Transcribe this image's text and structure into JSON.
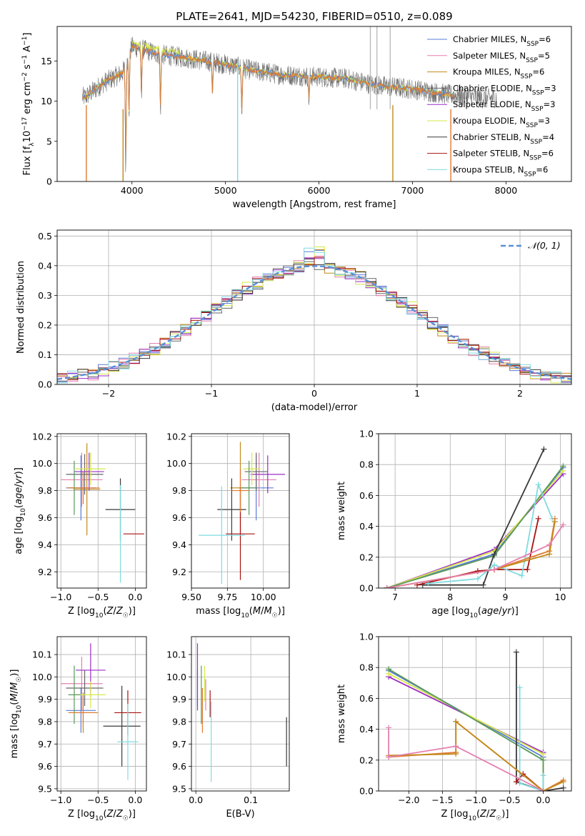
{
  "figure": {
    "title": "PLATE=2641, MJD=54230, FIBERID=0510, z=0.089"
  },
  "colors": {
    "Chabrier MILES": "#5a7bd6",
    "Salpeter MILES": "#e57fb0",
    "Kroupa MILES": "#c28a1a",
    "Chabrier ELODIE": "#666666",
    "Salpeter ELODIE": "#9b2cc7",
    "Kroupa ELODIE": "#d6e84a",
    "Chabrier STELIB": "#3a3a3a",
    "Salpeter STELIB": "#aa1111",
    "Kroupa STELIB": "#7fdbe0",
    "green": "#5a9a5a",
    "orange": "#e07a30",
    "gaussian": "#5b8fd6"
  },
  "chart_data": [
    {
      "id": "spectrum",
      "type": "line",
      "xlabel": "wavelength [Angstrom, rest frame]",
      "ylabel": "Flux [f_λ10^-17 erg cm^-2 s^-1 A^-1]",
      "xlim": [
        3200,
        8700
      ],
      "ylim": [
        0,
        19.3
      ],
      "xticks": [
        4000,
        5000,
        6000,
        7000,
        8000
      ],
      "yticks": [
        0,
        5,
        10,
        15
      ],
      "grid": false,
      "legend_position": "top-right",
      "legend": [
        {
          "label": "Chabrier MILES, N",
          "sub": "SSP",
          "eq": "=6",
          "color": "#5a7bd6"
        },
        {
          "label": "Salpeter MILES, N",
          "sub": "SSP",
          "eq": "=5",
          "color": "#e57fb0"
        },
        {
          "label": "Kroupa MILES, N",
          "sub": "SSP",
          "eq": "=6",
          "color": "#c28a1a"
        },
        {
          "label": "Chabrier ELODIE, N",
          "sub": "SSP",
          "eq": "=3",
          "color": "#666666"
        },
        {
          "label": "Salpeter ELODIE, N",
          "sub": "SSP",
          "eq": "=3",
          "color": "#9b2cc7"
        },
        {
          "label": "Kroupa ELODIE, N",
          "sub": "SSP",
          "eq": "=3",
          "color": "#d6e84a"
        },
        {
          "label": "Chabrier STELIB, N",
          "sub": "SSP",
          "eq": "=4",
          "color": "#3a3a3a"
        },
        {
          "label": "Salpeter STELIB, N",
          "sub": "SSP",
          "eq": "=6",
          "color": "#aa1111"
        },
        {
          "label": "Kroupa STELIB, N",
          "sub": "SSP",
          "eq": "=6",
          "color": "#7fdbe0"
        }
      ],
      "continuum": {
        "x": [
          3500,
          3700,
          3900,
          4000,
          4100,
          4300,
          4500,
          4800,
          5000,
          5300,
          5600,
          6000,
          6300,
          6600,
          7000,
          7400,
          7800,
          7900
        ],
        "y": [
          10.5,
          12.3,
          13.5,
          16.8,
          16.5,
          15.8,
          15.5,
          15.0,
          14.6,
          13.8,
          13.3,
          13.0,
          12.8,
          12.0,
          11.5,
          10.8,
          10.3,
          10.5
        ]
      },
      "data_range": [
        3470,
        7900
      ],
      "absorption_lines": [
        {
          "x": 3934,
          "depth": 13.5
        },
        {
          "x": 3969,
          "depth": 8.0
        },
        {
          "x": 4101,
          "depth": 6.0
        },
        {
          "x": 4305,
          "depth": 7.0
        },
        {
          "x": 4861,
          "depth": 4.0
        },
        {
          "x": 5175,
          "depth": 6.0
        },
        {
          "x": 5893,
          "depth": 3.0
        }
      ],
      "spikes": [
        {
          "x": 5130,
          "y0": 0,
          "y1": 15.0,
          "color": "#7fdbe0"
        },
        {
          "x": 3512,
          "y0": 0,
          "y1": 9.5,
          "color": "#e07a30"
        },
        {
          "x": 3905,
          "y0": 0,
          "y1": 9.0,
          "color": "#c28a1a"
        },
        {
          "x": 6790,
          "y0": 0,
          "y1": 9.5,
          "color": "#c28a1a"
        },
        {
          "x": 7410,
          "y0": 0,
          "y1": 9.0,
          "color": "#e07a30"
        },
        {
          "x": 6550,
          "y0": 9.0,
          "y1": 19.3,
          "color": "#bbbbbb"
        },
        {
          "x": 6620,
          "y0": 9.0,
          "y1": 19.3,
          "color": "#bbbbbb"
        },
        {
          "x": 6762,
          "y0": 9.0,
          "y1": 19.3,
          "color": "#bbbbbb"
        }
      ]
    },
    {
      "id": "residual_hist",
      "type": "step-histogram",
      "xlabel": "(data-model)/error",
      "ylabel": "Normed distribution",
      "xlim": [
        -2.5,
        2.5
      ],
      "ylim": [
        0,
        0.52
      ],
      "xticks": [
        -2,
        -1,
        0,
        1,
        2
      ],
      "yticks": [
        0.0,
        0.1,
        0.2,
        0.3,
        0.4,
        0.5
      ],
      "grid": true,
      "legend_position": "top-right",
      "legend": {
        "label": "𝒩(0, 1)",
        "color": "#5b8fd6"
      },
      "bin_width": 0.1,
      "x_start": -2.5,
      "series_colors": [
        "#5a7bd6",
        "#e57fb0",
        "#c28a1a",
        "#666666",
        "#9b2cc7",
        "#d6e84a",
        "#3a3a3a",
        "#aa1111",
        "#7fdbe0"
      ],
      "jitter": [
        0.018,
        0.025,
        0.02,
        0.022,
        0.02,
        0.025,
        0.02,
        0.018,
        0.02
      ]
    },
    {
      "id": "age_vs_Z",
      "type": "errorbar",
      "xlabel": "Z [log10(Z/Z☉)]",
      "ylabel": "age [log10(age/yr)]",
      "xlim": [
        -1.05,
        0.15
      ],
      "ylim": [
        9.08,
        10.22
      ],
      "xticks": [
        -1.0,
        -0.5,
        0.0
      ],
      "yticks": [
        9.2,
        9.4,
        9.6,
        9.8,
        10.0,
        10.2
      ],
      "grid": true,
      "points": [
        {
          "x": -0.73,
          "y": 9.82,
          "xe": 0.2,
          "ye": 0.24,
          "color": "#5a7bd6"
        },
        {
          "x": -0.72,
          "y": 9.88,
          "xe": 0.28,
          "ye": 0.2,
          "color": "#e57fb0"
        },
        {
          "x": -0.65,
          "y": 9.81,
          "xe": 0.18,
          "ye": 0.34,
          "color": "#c28a1a"
        },
        {
          "x": -0.68,
          "y": 9.92,
          "xe": 0.25,
          "ye": 0.15,
          "color": "#666666"
        },
        {
          "x": -0.62,
          "y": 9.94,
          "xe": 0.2,
          "ye": 0.14,
          "color": "#9b2cc7"
        },
        {
          "x": -0.6,
          "y": 9.96,
          "xe": 0.2,
          "ye": 0.12,
          "color": "#d6e84a"
        },
        {
          "x": -0.2,
          "y": 9.66,
          "xe": 0.2,
          "ye": 0.23,
          "color": "#3a3a3a"
        },
        {
          "x": -0.02,
          "y": 9.48,
          "xe": 0.14,
          "ye": 0.0,
          "color": "#aa1111"
        },
        {
          "x": -0.2,
          "y": 9.48,
          "xe": 0.0,
          "ye": 0.36,
          "color": "#7fdbe0"
        },
        {
          "x": -0.82,
          "y": 9.82,
          "xe": 0.08,
          "ye": 0.2,
          "color": "#5a9a5a"
        },
        {
          "x": -0.7,
          "y": 9.82,
          "xe": 0.22,
          "ye": 0.12,
          "color": "#e07a30"
        }
      ]
    },
    {
      "id": "age_vs_mass",
      "type": "errorbar",
      "xlabel": "mass [log10(M/M☉)]",
      "ylabel": "",
      "xlim": [
        9.5,
        10.18
      ],
      "ylim": [
        9.08,
        10.22
      ],
      "xticks": [
        9.5,
        9.75,
        10.0
      ],
      "yticks": [
        9.2,
        9.4,
        9.6,
        9.8,
        10.0,
        10.2
      ],
      "grid": true,
      "points": [
        {
          "x": 9.95,
          "y": 9.82,
          "xe": 0.12,
          "ye": 0.24,
          "color": "#5a7bd6"
        },
        {
          "x": 9.97,
          "y": 9.88,
          "xe": 0.12,
          "ye": 0.2,
          "color": "#e57fb0"
        },
        {
          "x": 9.84,
          "y": 9.82,
          "xe": 0.07,
          "ye": 0.34,
          "color": "#c28a1a"
        },
        {
          "x": 9.95,
          "y": 9.94,
          "xe": 0.08,
          "ye": 0.14,
          "color": "#666666"
        },
        {
          "x": 10.03,
          "y": 9.92,
          "xe": 0.12,
          "ye": 0.14,
          "color": "#9b2cc7"
        },
        {
          "x": 9.92,
          "y": 9.96,
          "xe": 0.06,
          "ye": 0.12,
          "color": "#d6e84a"
        },
        {
          "x": 9.78,
          "y": 9.66,
          "xe": 0.1,
          "ye": 0.23,
          "color": "#3a3a3a"
        },
        {
          "x": 9.84,
          "y": 9.48,
          "xe": 0.1,
          "ye": 0.34,
          "color": "#aa1111"
        },
        {
          "x": 9.71,
          "y": 9.47,
          "xe": 0.16,
          "ye": 0.36,
          "color": "#7fdbe0"
        },
        {
          "x": 9.9,
          "y": 9.82,
          "xe": 0.06,
          "ye": 0.2,
          "color": "#5a9a5a"
        },
        {
          "x": 9.84,
          "y": 9.8,
          "xe": 0.06,
          "ye": 0.16,
          "color": "#e07a30"
        }
      ]
    },
    {
      "id": "weight_vs_age",
      "type": "line",
      "xlabel": "age [log10(age/yr)]",
      "ylabel": "mass weight",
      "xlim": [
        6.7,
        10.2
      ],
      "ylim": [
        0,
        1.0
      ],
      "xticks": [
        7,
        8,
        9,
        10
      ],
      "yticks": [
        0.0,
        0.2,
        0.4,
        0.6,
        0.8,
        1.0
      ],
      "grid": true,
      "series": [
        {
          "color": "#5a7bd6",
          "x": [
            6.85,
            8.8,
            10.05
          ],
          "y": [
            0.0,
            0.22,
            0.78
          ]
        },
        {
          "color": "#9b2cc7",
          "x": [
            6.85,
            8.8,
            10.05
          ],
          "y": [
            0.0,
            0.25,
            0.74
          ]
        },
        {
          "color": "#d6e84a",
          "x": [
            6.85,
            8.8,
            10.05
          ],
          "y": [
            0.0,
            0.24,
            0.76
          ]
        },
        {
          "color": "#5a9a5a",
          "x": [
            6.85,
            8.8,
            10.05
          ],
          "y": [
            0.0,
            0.21,
            0.79
          ]
        },
        {
          "color": "#3a3a3a",
          "x": [
            7.5,
            8.6,
            8.8,
            9.7
          ],
          "y": [
            0.02,
            0.02,
            0.22,
            0.9
          ]
        },
        {
          "color": "#aa1111",
          "x": [
            7.4,
            8.5,
            8.8,
            9.4,
            9.6
          ],
          "y": [
            0.02,
            0.11,
            0.12,
            0.12,
            0.45
          ]
        },
        {
          "color": "#7fdbe0",
          "x": [
            7.6,
            8.5,
            8.8,
            9.3,
            9.6,
            9.85
          ],
          "y": [
            0.03,
            0.06,
            0.15,
            0.08,
            0.67,
            0.45
          ]
        },
        {
          "color": "#e07a30",
          "x": [
            6.85,
            8.8,
            9.8,
            9.9
          ],
          "y": [
            0.0,
            0.12,
            0.24,
            0.45
          ]
        },
        {
          "color": "#c28a1a",
          "x": [
            6.85,
            8.8,
            9.8,
            9.9
          ],
          "y": [
            0.0,
            0.12,
            0.22,
            0.43
          ]
        },
        {
          "color": "#e57fb0",
          "x": [
            6.85,
            8.8,
            9.8,
            10.05
          ],
          "y": [
            0.0,
            0.12,
            0.28,
            0.41
          ]
        }
      ]
    },
    {
      "id": "mass_vs_Z",
      "type": "errorbar",
      "xlabel": "Z [log10(Z/Z☉)]",
      "ylabel": "mass [log10(M/M☉)]",
      "xlim": [
        -1.05,
        0.15
      ],
      "ylim": [
        9.49,
        10.18
      ],
      "xticks": [
        -1.0,
        -0.5,
        0.0
      ],
      "yticks": [
        9.5,
        9.6,
        9.7,
        9.8,
        9.9,
        10.0,
        10.1
      ],
      "grid": true,
      "points": [
        {
          "x": -0.73,
          "y": 9.85,
          "xe": 0.2,
          "ye": 0.1,
          "color": "#5a7bd6"
        },
        {
          "x": -0.72,
          "y": 9.97,
          "xe": 0.28,
          "ye": 0.12,
          "color": "#e57fb0"
        },
        {
          "x": -0.7,
          "y": 9.84,
          "xe": 0.2,
          "ye": 0.09,
          "color": "#c28a1a"
        },
        {
          "x": -0.68,
          "y": 9.95,
          "xe": 0.25,
          "ye": 0.08,
          "color": "#666666"
        },
        {
          "x": -0.6,
          "y": 10.03,
          "xe": 0.2,
          "ye": 0.12,
          "color": "#9b2cc7"
        },
        {
          "x": -0.6,
          "y": 9.92,
          "xe": 0.2,
          "ye": 0.06,
          "color": "#d6e84a"
        },
        {
          "x": -0.18,
          "y": 9.78,
          "xe": 0.25,
          "ye": 0.18,
          "color": "#3a3a3a"
        },
        {
          "x": -0.1,
          "y": 9.84,
          "xe": 0.18,
          "ye": 0.1,
          "color": "#aa1111"
        },
        {
          "x": -0.1,
          "y": 9.71,
          "xe": 0.14,
          "ye": 0.17,
          "color": "#7fdbe0"
        },
        {
          "x": -0.82,
          "y": 9.92,
          "xe": 0.08,
          "ye": 0.13,
          "color": "#5a9a5a"
        },
        {
          "x": -0.7,
          "y": 9.84,
          "xe": 0.18,
          "ye": 0.07,
          "color": "#e07a30"
        }
      ]
    },
    {
      "id": "mass_vs_ebv",
      "type": "errorbar",
      "xlabel": "E(B-V)",
      "ylabel": "",
      "xlim": [
        -0.008,
        0.17
      ],
      "ylim": [
        9.49,
        10.18
      ],
      "xticks": [
        0.0,
        0.1
      ],
      "yticks": [
        9.5,
        9.6,
        9.7,
        9.8,
        9.9,
        10.0,
        10.1
      ],
      "grid": true,
      "points": [
        {
          "x": 0.003,
          "y": 9.95,
          "xe": 0,
          "ye": 0.08,
          "color": "#5a7bd6"
        },
        {
          "x": 0.003,
          "y": 10.0,
          "xe": 0,
          "ye": 0.15,
          "color": "#9b2cc7"
        },
        {
          "x": 0.01,
          "y": 9.92,
          "xe": 0,
          "ye": 0.13,
          "color": "#5a9a5a"
        },
        {
          "x": 0.012,
          "y": 9.85,
          "xe": 0,
          "ye": 0.1,
          "color": "#e07a30"
        },
        {
          "x": 0.016,
          "y": 9.97,
          "xe": 0,
          "ye": 0.08,
          "color": "#d6e84a"
        },
        {
          "x": 0.018,
          "y": 9.92,
          "xe": 0,
          "ye": 0.07,
          "color": "#e57fb0"
        },
        {
          "x": 0.026,
          "y": 9.88,
          "xe": 0,
          "ye": 0.06,
          "color": "#aa1111"
        },
        {
          "x": 0.028,
          "y": 9.71,
          "xe": 0,
          "ye": 0.18,
          "color": "#7fdbe0"
        },
        {
          "x": 0.165,
          "y": 9.71,
          "xe": 0,
          "ye": 0.11,
          "color": "#3a3a3a"
        }
      ]
    },
    {
      "id": "weight_vs_Z",
      "type": "line",
      "xlabel": "Z [log10(Z/Z☉)]",
      "ylabel": "mass weight",
      "xlim": [
        -2.45,
        0.42
      ],
      "ylim": [
        0,
        1.0
      ],
      "xticks": [
        -2.0,
        -1.5,
        -1.0,
        -0.5,
        0.0
      ],
      "yticks": [
        0.0,
        0.2,
        0.4,
        0.6,
        0.8,
        1.0
      ],
      "grid": true,
      "series": [
        {
          "color": "#5a7bd6",
          "x": [
            -2.3,
            0.0,
            0.0
          ],
          "y": [
            0.78,
            0.22,
            0.0
          ]
        },
        {
          "color": "#9b2cc7",
          "x": [
            -2.3,
            0.0,
            0.0
          ],
          "y": [
            0.74,
            0.25,
            0.0
          ]
        },
        {
          "color": "#d6e84a",
          "x": [
            -2.3,
            0.0,
            0.0
          ],
          "y": [
            0.76,
            0.24,
            0.0
          ]
        },
        {
          "color": "#5a9a5a",
          "x": [
            -2.3,
            0.0,
            0.0
          ],
          "y": [
            0.79,
            0.2,
            0.0
          ]
        },
        {
          "color": "#3a3a3a",
          "x": [
            -0.4,
            -0.4,
            0.0,
            0.3
          ],
          "y": [
            0.9,
            0.06,
            0.0,
            0.02
          ]
        },
        {
          "color": "#aa1111",
          "x": [
            -0.4,
            -0.3,
            0.0
          ],
          "y": [
            0.06,
            0.11,
            0.0
          ]
        },
        {
          "color": "#7fdbe0",
          "x": [
            -0.35,
            -0.35,
            0.0,
            0.0
          ],
          "y": [
            0.67,
            0.05,
            0.0,
            0.1
          ]
        },
        {
          "color": "#e07a30",
          "x": [
            -2.3,
            -1.3,
            -1.3,
            0.0,
            0.3
          ],
          "y": [
            0.22,
            0.25,
            0.45,
            0.0,
            0.07
          ]
        },
        {
          "color": "#c28a1a",
          "x": [
            -2.3,
            -1.3,
            -1.3,
            0.0,
            0.3
          ],
          "y": [
            0.23,
            0.24,
            0.45,
            0.0,
            0.06
          ]
        },
        {
          "color": "#e57fb0",
          "x": [
            -2.3,
            -2.3,
            -1.3,
            0.0
          ],
          "y": [
            0.41,
            0.22,
            0.29,
            0.0
          ]
        }
      ]
    }
  ]
}
